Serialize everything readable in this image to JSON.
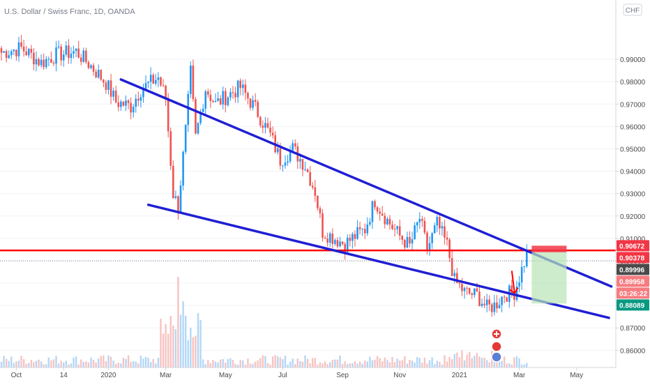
{
  "chart_data": {
    "type": "candlestick",
    "title": "U.S. Dollar / Swiss Franc, 1D, OANDA",
    "currency": "CHF",
    "ylim": [
      0.8545,
      1.0165
    ],
    "y_ticks": [
      "0.99000",
      "0.98000",
      "0.97000",
      "0.96000",
      "0.95000",
      "0.94000",
      "0.93000",
      "0.92000",
      "0.91000",
      "0.90000",
      "0.89000",
      "0.88000",
      "0.87000",
      "0.86000"
    ],
    "y_tick_values": [
      0.99,
      0.98,
      0.97,
      0.96,
      0.95,
      0.94,
      0.93,
      0.92,
      0.91,
      0.9,
      0.89,
      0.88,
      0.87,
      0.86
    ],
    "x_ticks": [
      "Oct",
      "14",
      "2020",
      "Mar",
      "May",
      "Jul",
      "Sep",
      "Nov",
      "2021",
      "Mar",
      "May"
    ],
    "price_labels": [
      {
        "text": "0.90672",
        "value": 0.90672,
        "color": "#f23645"
      },
      {
        "text": "0.90378",
        "value": 0.90378,
        "color": "#f23645"
      },
      {
        "text": "0.89996",
        "value": 0.89996,
        "color": "#4a4a4a"
      },
      {
        "text": "0.89958",
        "value": 0.89958,
        "color": "#f77c80"
      },
      {
        "text": "03:26:22",
        "value": 0.895,
        "color": "#f77c80"
      },
      {
        "text": "0.88089",
        "value": 0.88089,
        "color": "#089981"
      }
    ],
    "horizontal_line": {
      "value": 0.9046,
      "color": "#ff0000"
    },
    "current_price_line": {
      "value": 0.89996,
      "color": "#787b86"
    },
    "trendlines": [
      {
        "name": "upper",
        "from": {
          "x_index": 48,
          "y": 0.981
        },
        "to": {
          "x_index": 245,
          "y": 0.8885
        },
        "color": "#1f1fd4"
      },
      {
        "name": "lower",
        "from": {
          "x_index": 59,
          "y": 0.925
        },
        "to": {
          "x_index": 244,
          "y": 0.8745
        },
        "color": "#1f1fd4"
      }
    ],
    "position": {
      "entry": 0.90378,
      "stop": 0.90672,
      "target": 0.88089,
      "stop_color": "#f23645",
      "target_color": "#b7e4b7"
    },
    "arrow": {
      "color": "#ff0000",
      "direction": "down"
    },
    "anchors": [
      {
        "i": 0,
        "p": 0.993
      },
      {
        "i": 8,
        "p": 0.995
      },
      {
        "i": 16,
        "p": 0.9885
      },
      {
        "i": 22,
        "p": 0.992
      },
      {
        "i": 30,
        "p": 0.9935
      },
      {
        "i": 36,
        "p": 0.987
      },
      {
        "i": 42,
        "p": 0.9795
      },
      {
        "i": 46,
        "p": 0.971
      },
      {
        "i": 52,
        "p": 0.969
      },
      {
        "i": 56,
        "p": 0.9765
      },
      {
        "i": 63,
        "p": 0.982
      },
      {
        "i": 66,
        "p": 0.9725
      },
      {
        "i": 69,
        "p": 0.93
      },
      {
        "i": 71,
        "p": 0.924
      },
      {
        "i": 74,
        "p": 0.958
      },
      {
        "i": 76,
        "p": 0.984
      },
      {
        "i": 78,
        "p": 0.955
      },
      {
        "i": 82,
        "p": 0.977
      },
      {
        "i": 86,
        "p": 0.97
      },
      {
        "i": 91,
        "p": 0.974
      },
      {
        "i": 96,
        "p": 0.9775
      },
      {
        "i": 102,
        "p": 0.968
      },
      {
        "i": 108,
        "p": 0.956
      },
      {
        "i": 112,
        "p": 0.945
      },
      {
        "i": 117,
        "p": 0.95
      },
      {
        "i": 122,
        "p": 0.9425
      },
      {
        "i": 126,
        "p": 0.931
      },
      {
        "i": 129,
        "p": 0.913
      },
      {
        "i": 134,
        "p": 0.91
      },
      {
        "i": 138,
        "p": 0.9075
      },
      {
        "i": 142,
        "p": 0.911
      },
      {
        "i": 146,
        "p": 0.914
      },
      {
        "i": 150,
        "p": 0.927
      },
      {
        "i": 155,
        "p": 0.918
      },
      {
        "i": 160,
        "p": 0.911
      },
      {
        "i": 164,
        "p": 0.9065
      },
      {
        "i": 168,
        "p": 0.919
      },
      {
        "i": 171,
        "p": 0.905
      },
      {
        "i": 175,
        "p": 0.9165
      },
      {
        "i": 179,
        "p": 0.907
      },
      {
        "i": 182,
        "p": 0.891
      },
      {
        "i": 186,
        "p": 0.886
      },
      {
        "i": 191,
        "p": 0.8845
      },
      {
        "i": 195,
        "p": 0.879
      },
      {
        "i": 198,
        "p": 0.88
      },
      {
        "i": 202,
        "p": 0.885
      },
      {
        "i": 206,
        "p": 0.886
      },
      {
        "i": 209,
        "p": 0.896
      },
      {
        "i": 211,
        "p": 0.903
      }
    ],
    "bar_count": 212,
    "colors": {
      "up": "#2196f3",
      "down": "#ef5350",
      "vol_up": "#b3d7f7",
      "vol_down": "#f7c3c1",
      "grid": "#f0f3fa"
    }
  }
}
